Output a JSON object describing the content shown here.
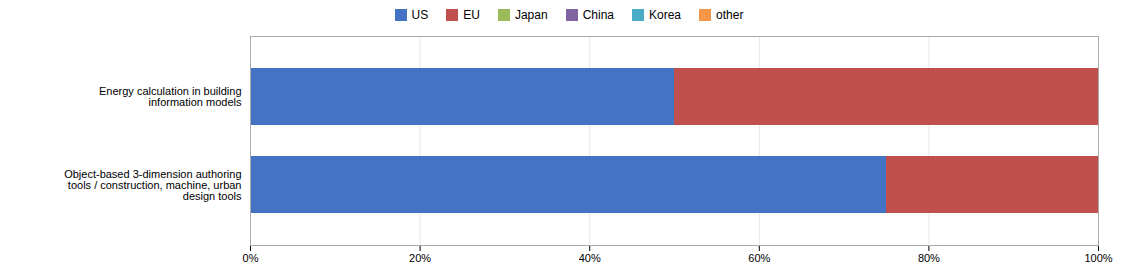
{
  "chart_data": {
    "type": "bar",
    "orientation": "horizontal",
    "stacked": true,
    "categories": [
      "Energy calculation in building\ninformation models",
      "Object-based 3-dimension authoring\ntools / construction, machine, urban\ndesign tools"
    ],
    "series": [
      {
        "name": "US",
        "color": "#4472C4",
        "values": [
          50,
          75
        ]
      },
      {
        "name": "EU",
        "color": "#C0504D",
        "values": [
          50,
          25
        ]
      },
      {
        "name": "Japan",
        "color": "#9BBB59",
        "values": [
          0,
          0
        ]
      },
      {
        "name": "China",
        "color": "#8064A2",
        "values": [
          0,
          0
        ]
      },
      {
        "name": "Korea",
        "color": "#4BACC6",
        "values": [
          0,
          0
        ]
      },
      {
        "name": "other",
        "color": "#F79646",
        "values": [
          0,
          0
        ]
      }
    ],
    "xlim": [
      0,
      100
    ],
    "xticks": [
      {
        "value": 0,
        "label": "0%"
      },
      {
        "value": 20,
        "label": "20%"
      },
      {
        "value": 40,
        "label": "40%"
      },
      {
        "value": 60,
        "label": "60%"
      },
      {
        "value": 80,
        "label": "80%"
      },
      {
        "value": 100,
        "label": "100%"
      }
    ],
    "grid": true,
    "legend": "top"
  }
}
